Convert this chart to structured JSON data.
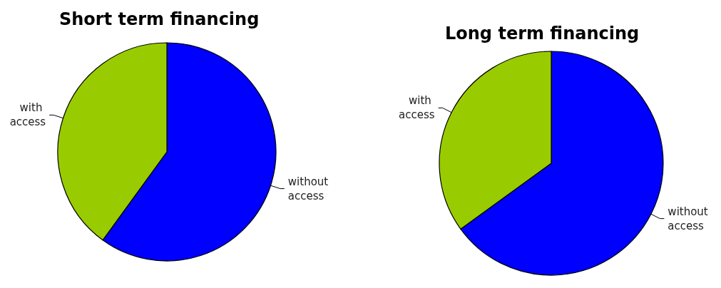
{
  "chart_data": [
    {
      "type": "pie",
      "title": "Short term financing",
      "categories": [
        "without access",
        "with access"
      ],
      "values": [
        60,
        40
      ],
      "colors": [
        "#0000ff",
        "#99cc00"
      ],
      "legend": false
    },
    {
      "type": "pie",
      "title": "Long term financing",
      "categories": [
        "without access",
        "with access"
      ],
      "values": [
        65,
        35
      ],
      "colors": [
        "#0000ff",
        "#99cc00"
      ],
      "legend": false
    }
  ]
}
